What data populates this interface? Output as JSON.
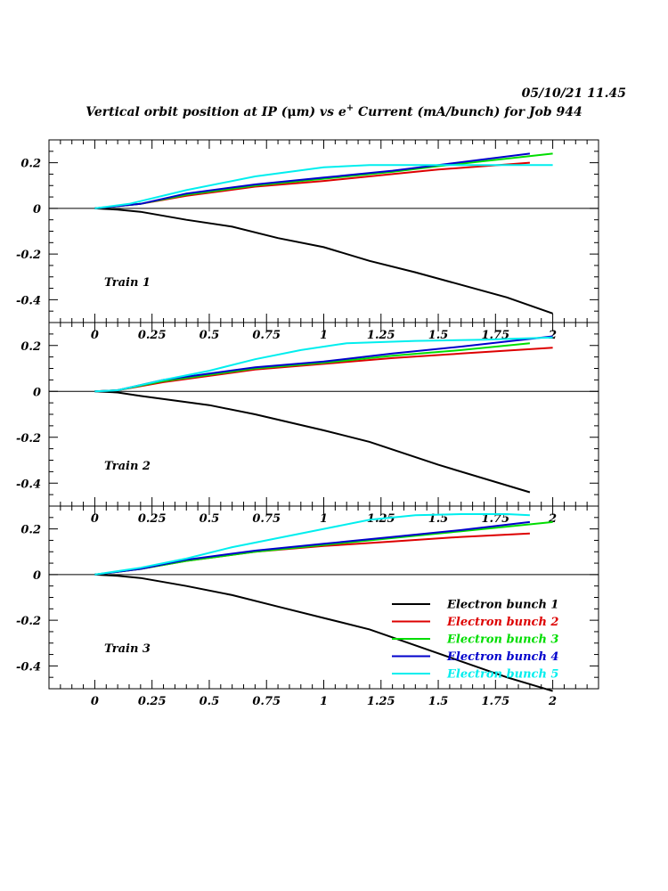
{
  "header": {
    "timestamp": "05/10/21   11.45",
    "title_prefix": "Vertical orbit position at IP (",
    "title_mu": "μ",
    "title_mid": "m) vs e",
    "title_sup": "+",
    "title_suffix": " Current (mA/bunch) for Job 944"
  },
  "colors": {
    "frame": "#000000",
    "bunch1": "#000000",
    "bunch2": "#dd0000",
    "bunch3": "#00dd00",
    "bunch4": "#0000cc",
    "bunch5": "#00eeee"
  },
  "legend": [
    {
      "label": "Electron bunch 1",
      "color": "#000000"
    },
    {
      "label": "Electron bunch 2",
      "color": "#dd0000"
    },
    {
      "label": "Electron bunch 3",
      "color": "#00dd00"
    },
    {
      "label": "Electron bunch 4",
      "color": "#0000cc"
    },
    {
      "label": "Electron bunch 5",
      "color": "#00eeee"
    }
  ],
  "chart_data": [
    {
      "type": "line",
      "label": "Train 1",
      "xlim": [
        -0.2,
        2.2
      ],
      "ylim": [
        -0.5,
        0.3
      ],
      "x_ticks": [
        "0",
        "0.25",
        "0.5",
        "0.75",
        "1",
        "1.25",
        "1.5",
        "1.75",
        "2"
      ],
      "y_ticks": [
        "0.2",
        "0",
        "-0.2",
        "-0.4"
      ],
      "series": [
        {
          "name": "Electron bunch 1",
          "x": [
            0,
            0.1,
            0.2,
            0.4,
            0.6,
            0.8,
            1.0,
            1.2,
            1.4,
            1.6,
            1.8,
            2.0
          ],
          "y": [
            0,
            -0.005,
            -0.015,
            -0.05,
            -0.08,
            -0.13,
            -0.17,
            -0.23,
            -0.28,
            -0.335,
            -0.39,
            -0.46
          ]
        },
        {
          "name": "Electron bunch 2",
          "x": [
            0,
            0.2,
            0.4,
            0.7,
            1.0,
            1.3,
            1.5,
            1.9
          ],
          "y": [
            0,
            0.02,
            0.055,
            0.095,
            0.12,
            0.15,
            0.17,
            0.2
          ]
        },
        {
          "name": "Electron bunch 3",
          "x": [
            0,
            0.2,
            0.4,
            0.7,
            1.0,
            1.3,
            1.5,
            2.0
          ],
          "y": [
            0,
            0.02,
            0.06,
            0.1,
            0.13,
            0.16,
            0.185,
            0.24
          ]
        },
        {
          "name": "Electron bunch 4",
          "x": [
            0,
            0.2,
            0.4,
            0.7,
            1.0,
            1.3,
            1.5,
            1.9
          ],
          "y": [
            0,
            0.02,
            0.065,
            0.105,
            0.135,
            0.165,
            0.19,
            0.24
          ]
        },
        {
          "name": "Electron bunch 5",
          "x": [
            0,
            0.15,
            0.4,
            0.7,
            1.0,
            1.2,
            1.5,
            2.0
          ],
          "y": [
            0,
            0.02,
            0.08,
            0.14,
            0.18,
            0.19,
            0.19,
            0.19
          ]
        }
      ]
    },
    {
      "type": "line",
      "label": "Train 2",
      "xlim": [
        -0.2,
        2.2
      ],
      "ylim": [
        -0.5,
        0.3
      ],
      "x_ticks": [
        "0",
        "0.25",
        "0.5",
        "0.75",
        "1",
        "1.25",
        "1.5",
        "1.75",
        "2"
      ],
      "y_ticks": [
        "0.2",
        "0",
        "-0.2",
        "-0.4"
      ],
      "series": [
        {
          "name": "Electron bunch 1",
          "x": [
            0,
            0.1,
            0.2,
            0.5,
            0.7,
            1.0,
            1.2,
            1.5,
            1.9
          ],
          "y": [
            0,
            -0.005,
            -0.02,
            -0.06,
            -0.1,
            -0.17,
            -0.22,
            -0.32,
            -0.44
          ]
        },
        {
          "name": "Electron bunch 2",
          "x": [
            0,
            0.1,
            0.3,
            0.7,
            1.0,
            1.3,
            1.6,
            2.0
          ],
          "y": [
            0,
            0.005,
            0.04,
            0.095,
            0.12,
            0.145,
            0.165,
            0.19
          ]
        },
        {
          "name": "Electron bunch 3",
          "x": [
            0,
            0.1,
            0.3,
            0.7,
            1.0,
            1.3,
            1.6,
            1.9
          ],
          "y": [
            0,
            0.005,
            0.045,
            0.1,
            0.125,
            0.155,
            0.18,
            0.21
          ]
        },
        {
          "name": "Electron bunch 4",
          "x": [
            0,
            0.1,
            0.3,
            0.7,
            1.0,
            1.3,
            1.6,
            2.0
          ],
          "y": [
            0,
            0.005,
            0.05,
            0.105,
            0.13,
            0.165,
            0.195,
            0.24
          ]
        },
        {
          "name": "Electron bunch 5",
          "x": [
            0,
            0.1,
            0.3,
            0.5,
            0.7,
            0.9,
            1.1,
            1.4,
            1.7,
            2.0
          ],
          "y": [
            0,
            0.005,
            0.05,
            0.09,
            0.14,
            0.18,
            0.21,
            0.22,
            0.225,
            0.235
          ]
        }
      ]
    },
    {
      "type": "line",
      "label": "Train 3",
      "xlim": [
        -0.2,
        2.2
      ],
      "ylim": [
        -0.5,
        0.3
      ],
      "x_ticks": [
        "0",
        "0.25",
        "0.5",
        "0.75",
        "1",
        "1.25",
        "1.5",
        "1.75",
        "2"
      ],
      "y_ticks": [
        "0.2",
        "0",
        "-0.2",
        "-0.4"
      ],
      "series": [
        {
          "name": "Electron bunch 1",
          "x": [
            0,
            0.1,
            0.2,
            0.4,
            0.6,
            0.8,
            1.0,
            1.2,
            1.4,
            1.6,
            1.8,
            2.0
          ],
          "y": [
            0,
            -0.005,
            -0.015,
            -0.05,
            -0.09,
            -0.14,
            -0.19,
            -0.24,
            -0.31,
            -0.38,
            -0.45,
            -0.51
          ]
        },
        {
          "name": "Electron bunch 2",
          "x": [
            0,
            0.2,
            0.4,
            0.7,
            1.0,
            1.3,
            1.6,
            1.9
          ],
          "y": [
            0,
            0.025,
            0.06,
            0.1,
            0.125,
            0.145,
            0.165,
            0.18
          ]
        },
        {
          "name": "Electron bunch 3",
          "x": [
            0,
            0.2,
            0.4,
            0.7,
            1.0,
            1.3,
            1.6,
            2.0
          ],
          "y": [
            0,
            0.025,
            0.06,
            0.1,
            0.13,
            0.16,
            0.19,
            0.23
          ]
        },
        {
          "name": "Electron bunch 4",
          "x": [
            0,
            0.2,
            0.4,
            0.7,
            1.0,
            1.3,
            1.6,
            1.9
          ],
          "y": [
            0,
            0.025,
            0.065,
            0.105,
            0.135,
            0.165,
            0.195,
            0.23
          ]
        },
        {
          "name": "Electron bunch 5",
          "x": [
            0,
            0.2,
            0.4,
            0.6,
            0.8,
            1.0,
            1.2,
            1.4,
            1.6,
            1.8,
            1.9
          ],
          "y": [
            0,
            0.03,
            0.07,
            0.12,
            0.16,
            0.2,
            0.24,
            0.26,
            0.265,
            0.265,
            0.26
          ]
        }
      ]
    }
  ]
}
